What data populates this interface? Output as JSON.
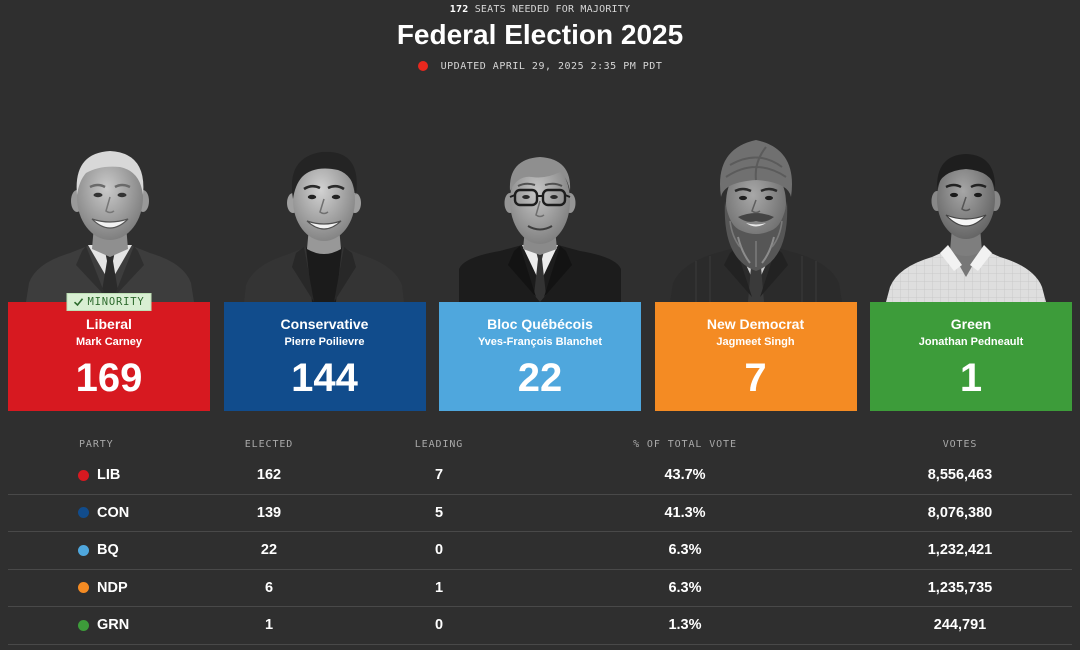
{
  "header": {
    "majority_count": "172",
    "majority_label": "SEATS NEEDED FOR MAJORITY",
    "title": "Federal Election 2025",
    "updated": "UPDATED APRIL 29, 2025 2:35 PM PDT",
    "live_indicator_color": "#e8281e"
  },
  "parties": [
    {
      "name": "Liberal",
      "leader": "Mark Carney",
      "seats": "169",
      "color": "#d71920",
      "badge": {
        "icon": "check-icon",
        "label": "MINORITY"
      }
    },
    {
      "name": "Conservative",
      "leader": "Pierre Poilievre",
      "seats": "144",
      "color": "#114c8c"
    },
    {
      "name": "Bloc Québécois",
      "leader": "Yves-François Blanchet",
      "seats": "22",
      "color": "#4fa7dd"
    },
    {
      "name": "New Democrat",
      "leader": "Jagmeet Singh",
      "seats": "7",
      "color": "#f48b23"
    },
    {
      "name": "Green",
      "leader": "Jonathan Pedneault",
      "seats": "1",
      "color": "#3d9c3a"
    }
  ],
  "results_table": {
    "columns": {
      "party": "PARTY",
      "elected": "ELECTED",
      "leading": "LEADING",
      "vote_share": "% OF TOTAL VOTE",
      "votes": "VOTES"
    },
    "rows": [
      {
        "party": "LIB",
        "color": "#d71920",
        "elected": "162",
        "leading": "7",
        "vote_share": "43.7%",
        "votes": "8,556,463"
      },
      {
        "party": "CON",
        "color": "#114c8c",
        "elected": "139",
        "leading": "5",
        "vote_share": "41.3%",
        "votes": "8,076,380"
      },
      {
        "party": "BQ",
        "color": "#4fa7dd",
        "elected": "22",
        "leading": "0",
        "vote_share": "6.3%",
        "votes": "1,232,421"
      },
      {
        "party": "NDP",
        "color": "#f48b23",
        "elected": "6",
        "leading": "1",
        "vote_share": "6.3%",
        "votes": "1,235,735"
      },
      {
        "party": "GRN",
        "color": "#3d9c3a",
        "elected": "1",
        "leading": "0",
        "vote_share": "1.3%",
        "votes": "244,791"
      }
    ]
  }
}
